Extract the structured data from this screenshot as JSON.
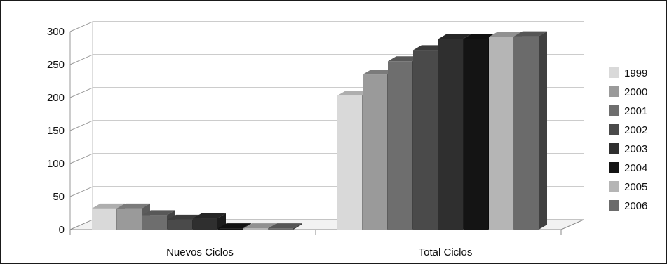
{
  "chart_data": {
    "type": "bar",
    "style": "3d-clustered-column",
    "categories": [
      "Nuevos Ciclos",
      "Total Ciclos"
    ],
    "series": [
      {
        "name": "1999",
        "values": [
          32,
          203
        ],
        "color": "#d9d9d9"
      },
      {
        "name": "2000",
        "values": [
          32,
          235
        ],
        "color": "#9a9a9a"
      },
      {
        "name": "2001",
        "values": [
          22,
          255
        ],
        "color": "#6e6e6e"
      },
      {
        "name": "2002",
        "values": [
          15,
          272
        ],
        "color": "#4a4a4a"
      },
      {
        "name": "2003",
        "values": [
          17,
          289
        ],
        "color": "#2f2f2f"
      },
      {
        "name": "2004",
        "values": [
          2,
          289
        ],
        "color": "#141414"
      },
      {
        "name": "2005",
        "values": [
          2,
          292
        ],
        "color": "#b5b5b5"
      },
      {
        "name": "2006",
        "values": [
          2,
          293
        ],
        "color": "#6b6b6b"
      }
    ],
    "ylim": [
      0,
      300
    ],
    "yticks": [
      "0",
      "50",
      "100",
      "150",
      "200",
      "250",
      "300"
    ],
    "grid": true,
    "legend_position": "right",
    "title": "",
    "xlabel": "",
    "ylabel": ""
  }
}
